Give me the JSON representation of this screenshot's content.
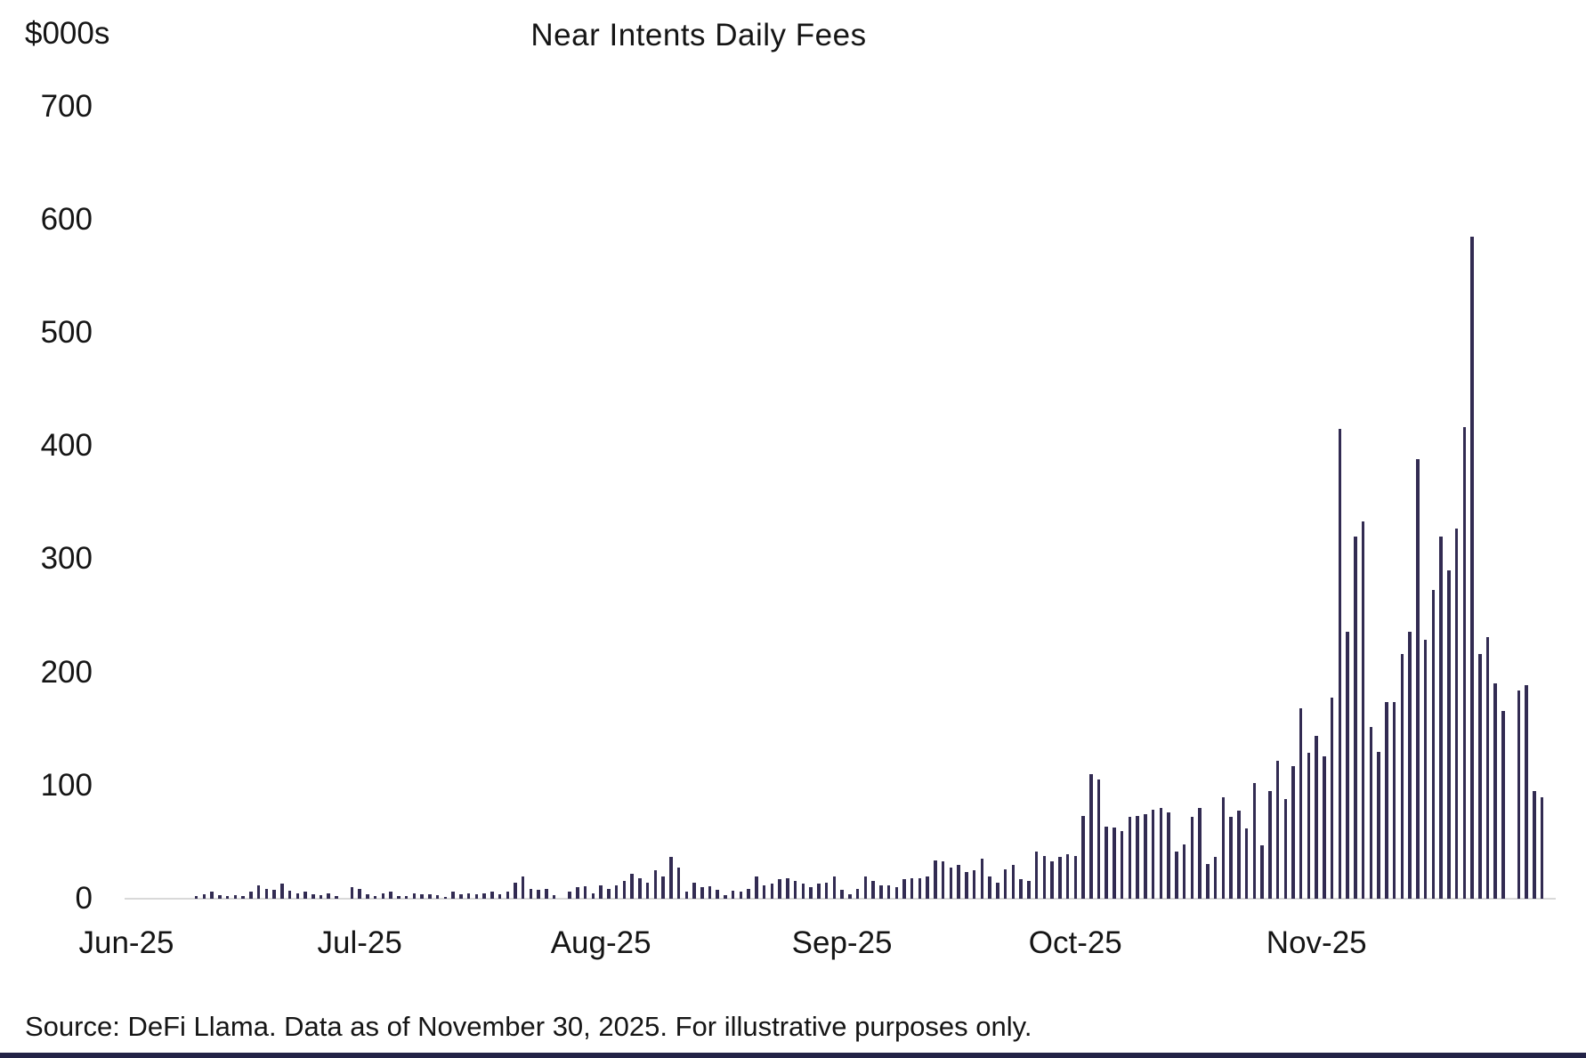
{
  "title": "Near Intents Daily Fees",
  "y_axis": {
    "unit_label": "$000s",
    "ticks": [
      700,
      600,
      500,
      400,
      300,
      200,
      100,
      0
    ]
  },
  "x_axis": {
    "labels": [
      "Jun-25",
      "Jul-25",
      "Aug-25",
      "Sep-25",
      "Oct-25",
      "Nov-25"
    ],
    "month_start_day_offsets": [
      0,
      30,
      61,
      92,
      122,
      153
    ]
  },
  "source_note": "Source: DeFi Llama. Data as of November 30, 2025. For illustrative purposes only.",
  "colors": {
    "bar": "#322B52",
    "axis_line": "#D9D9D9",
    "text": "#151515",
    "footer_bar": "#232347"
  },
  "chart_data": {
    "type": "bar",
    "title": "Near Intents Daily Fees",
    "ylabel": "$000s",
    "xlabel": "",
    "ylim": [
      0,
      700
    ],
    "grid": false,
    "legend": false,
    "frequency": "daily",
    "x_start": "2025-06-01",
    "x_end": "2025-11-30",
    "values": [
      0,
      0,
      0,
      0,
      0,
      0,
      0,
      0,
      0,
      2,
      4,
      6,
      3,
      2,
      3,
      2,
      6.5,
      12,
      9,
      8,
      13,
      7,
      5,
      6,
      4,
      3,
      5,
      2,
      0,
      10.5,
      9,
      4,
      2,
      5,
      6,
      2,
      2.5,
      5,
      4,
      4,
      3,
      1.5,
      6,
      4,
      5,
      4,
      5,
      6,
      4,
      6.5,
      14.5,
      20,
      9,
      8,
      9,
      3,
      0,
      6.5,
      10.5,
      11,
      5,
      12,
      9,
      12,
      16,
      22,
      18,
      14,
      25,
      20,
      37,
      27.5,
      6.5,
      14,
      10.5,
      11,
      8,
      3,
      7,
      6.5,
      9,
      20,
      12,
      13,
      17,
      18,
      16,
      13,
      10.5,
      13,
      14.5,
      20,
      8,
      4,
      9,
      20,
      16,
      12,
      12,
      10.5,
      17,
      18,
      18,
      20,
      34,
      33,
      27.5,
      30,
      23.5,
      25,
      35,
      20,
      14.5,
      26,
      30,
      17,
      16,
      42,
      38,
      33,
      37,
      39,
      38,
      73.5,
      110,
      105,
      64,
      63,
      60,
      72,
      73.5,
      75,
      79,
      80,
      76,
      42,
      48,
      72,
      80,
      31,
      37,
      90,
      72,
      78,
      62,
      102,
      47,
      95,
      122,
      88,
      117,
      168,
      129,
      144,
      126,
      178,
      415,
      236,
      320,
      333,
      152,
      130,
      174,
      174,
      216,
      236,
      388,
      229,
      273,
      320,
      290,
      327,
      417,
      585,
      216,
      231,
      190,
      166,
      0,
      184,
      189,
      95,
      90
    ]
  }
}
